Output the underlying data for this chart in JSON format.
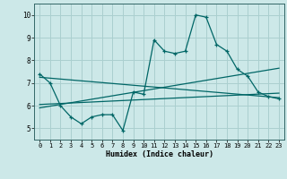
{
  "title": "",
  "xlabel": "Humidex (Indice chaleur)",
  "xlim": [
    -0.5,
    23.5
  ],
  "ylim": [
    4.5,
    10.5
  ],
  "yticks": [
    5,
    6,
    7,
    8,
    9,
    10
  ],
  "xticks": [
    0,
    1,
    2,
    3,
    4,
    5,
    6,
    7,
    8,
    9,
    10,
    11,
    12,
    13,
    14,
    15,
    16,
    17,
    18,
    19,
    20,
    21,
    22,
    23
  ],
  "bg_color": "#cce8e8",
  "grid_color": "#aacfcf",
  "line_color": "#006666",
  "series": [
    [
      0,
      7.4
    ],
    [
      1,
      7.0
    ],
    [
      2,
      6.0
    ],
    [
      3,
      5.5
    ],
    [
      4,
      5.2
    ],
    [
      5,
      5.5
    ],
    [
      6,
      5.6
    ],
    [
      7,
      5.6
    ],
    [
      8,
      4.9
    ],
    [
      9,
      6.6
    ],
    [
      10,
      6.5
    ],
    [
      11,
      8.9
    ],
    [
      12,
      8.4
    ],
    [
      13,
      8.3
    ],
    [
      14,
      8.4
    ],
    [
      15,
      10.0
    ],
    [
      16,
      9.9
    ],
    [
      17,
      8.7
    ],
    [
      18,
      8.4
    ],
    [
      19,
      7.6
    ],
    [
      20,
      7.3
    ],
    [
      21,
      6.6
    ],
    [
      22,
      6.4
    ],
    [
      23,
      6.3
    ]
  ],
  "trend_line1": [
    [
      0,
      7.25
    ],
    [
      23,
      6.35
    ]
  ],
  "trend_line2": [
    [
      0,
      6.05
    ],
    [
      23,
      6.55
    ]
  ],
  "trend_line3": [
    [
      0,
      5.9
    ],
    [
      23,
      7.65
    ]
  ]
}
